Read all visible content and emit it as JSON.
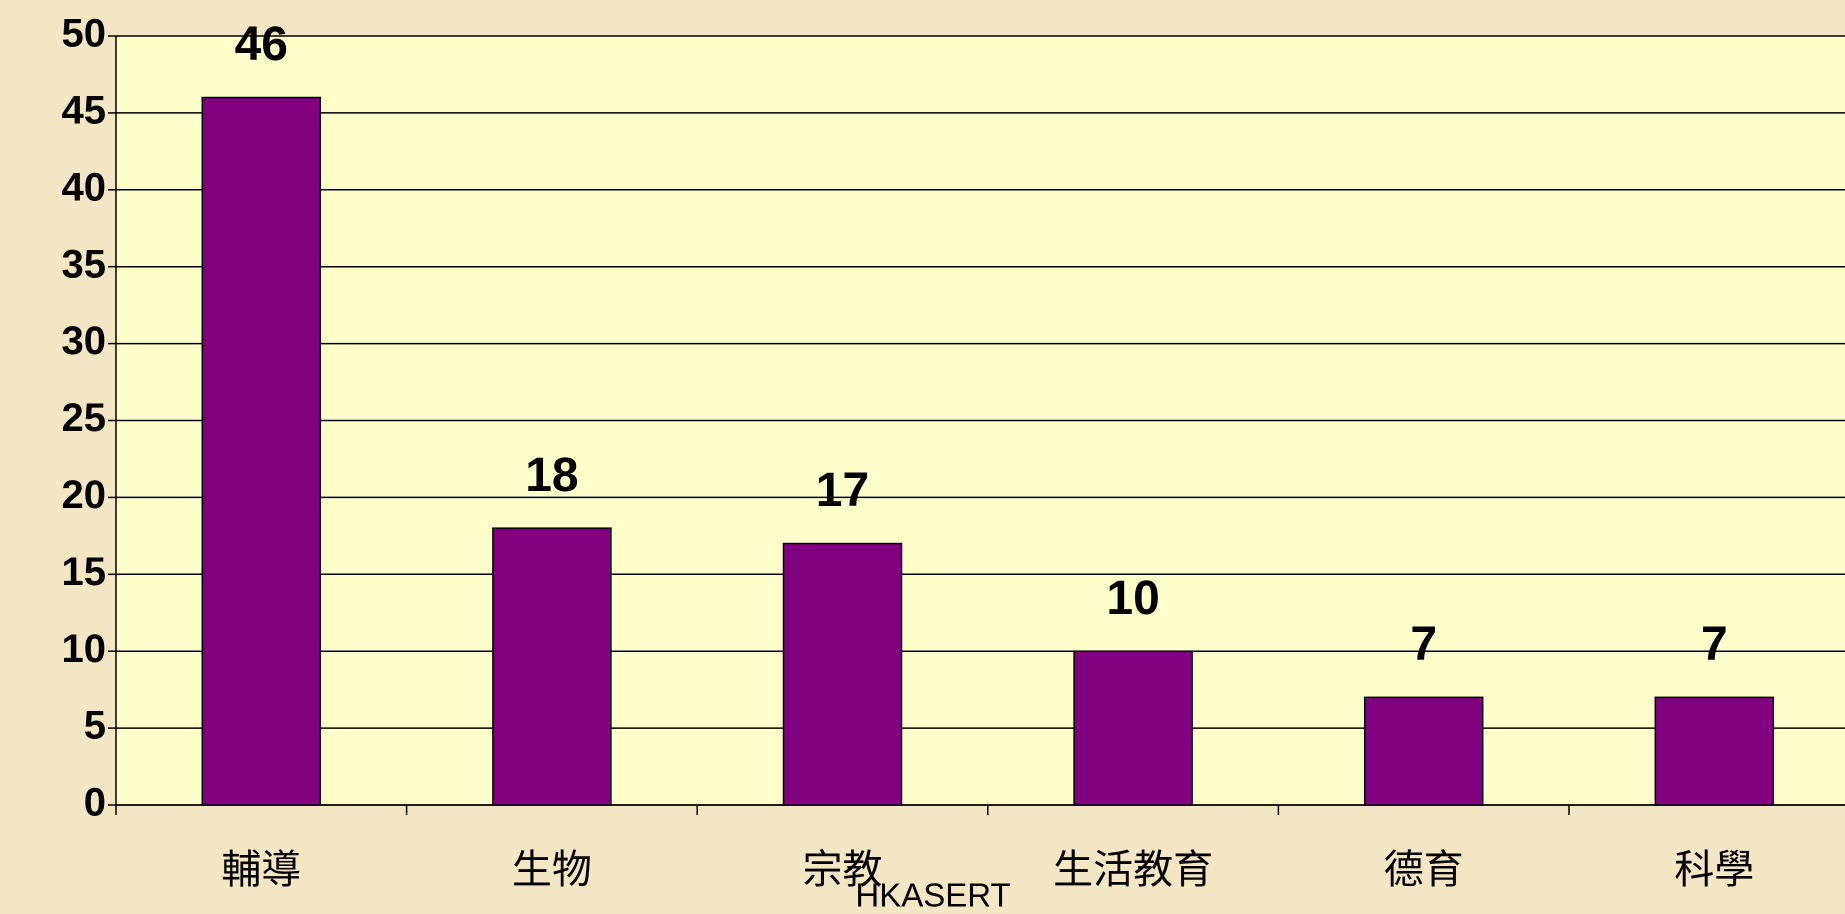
{
  "chart_data": {
    "type": "bar",
    "categories": [
      "輔導",
      "生物",
      "宗教",
      "生活教育",
      "德育",
      "科學"
    ],
    "values": [
      46,
      18,
      17,
      10,
      7,
      7
    ],
    "color": "#800080",
    "ylim": [
      0,
      50
    ],
    "yticks": [
      0,
      5,
      10,
      15,
      20,
      25,
      30,
      35,
      40,
      45,
      50
    ],
    "grid": true,
    "watermark": "HKASERT"
  }
}
